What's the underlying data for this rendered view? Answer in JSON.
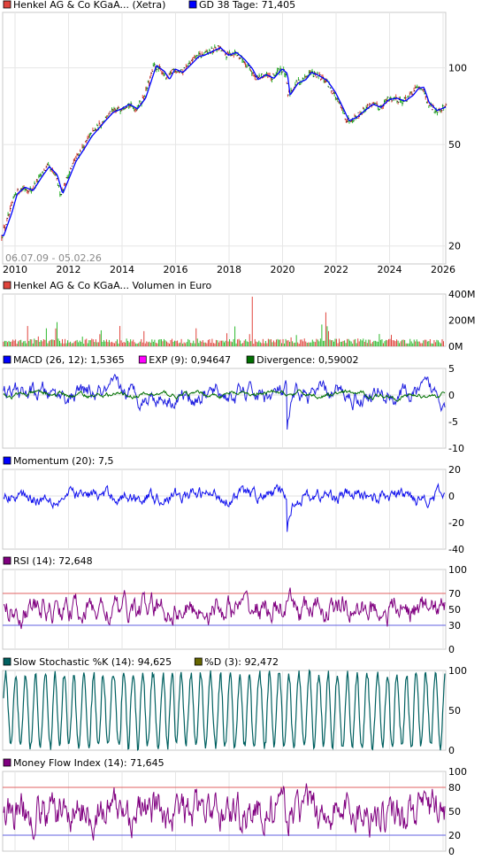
{
  "chart_data": [
    {
      "type": "line",
      "panel": "price",
      "legend": [
        {
          "label": "Henkel AG & Co KGaA... (Xetra)",
          "color": "#e0443c"
        },
        {
          "label": "GD 38 Tage: 71,405",
          "color": "#0000ff"
        }
      ],
      "date_range_label": "06.07.09 - 05.02.26",
      "x_ticks": [
        "2010",
        "2012",
        "2014",
        "2016",
        "2018",
        "2020",
        "2022",
        "2024",
        "2026"
      ],
      "y_ticks": [
        "100",
        "50",
        "20"
      ],
      "y_scale": "log",
      "ylim": [
        17,
        165
      ],
      "x": [
        2009.5,
        2009.8,
        2010.0,
        2010.3,
        2010.6,
        2010.9,
        2011.2,
        2011.5,
        2011.7,
        2011.9,
        2012.2,
        2012.5,
        2012.8,
        2013.0,
        2013.3,
        2013.6,
        2013.9,
        2014.2,
        2014.5,
        2014.8,
        2015.0,
        2015.2,
        2015.5,
        2015.7,
        2015.9,
        2016.2,
        2016.5,
        2016.8,
        2017.0,
        2017.3,
        2017.6,
        2017.9,
        2018.2,
        2018.5,
        2018.8,
        2019.0,
        2019.3,
        2019.6,
        2019.9,
        2020.1,
        2020.2,
        2020.5,
        2020.8,
        2021.0,
        2021.3,
        2021.6,
        2021.9,
        2022.2,
        2022.4,
        2022.7,
        2023.0,
        2023.3,
        2023.6,
        2023.9,
        2024.2,
        2024.5,
        2024.8,
        2025.0,
        2025.2,
        2025.4,
        2025.7,
        2026.0,
        2026.1
      ],
      "y": [
        22,
        27,
        32,
        34,
        33,
        37,
        41,
        38,
        32,
        36,
        43,
        48,
        54,
        57,
        62,
        67,
        69,
        72,
        69,
        76,
        88,
        102,
        97,
        90,
        99,
        96,
        103,
        111,
        112,
        116,
        120,
        112,
        115,
        108,
        99,
        90,
        94,
        91,
        99,
        95,
        78,
        87,
        90,
        96,
        93,
        89,
        80,
        69,
        62,
        64,
        68,
        72,
        70,
        75,
        76,
        74,
        78,
        83,
        84,
        73,
        68,
        70,
        71
      ]
    },
    {
      "type": "bar",
      "panel": "volume",
      "legend": [
        {
          "label": "Henkel AG & Co KGaA... Volumen in Euro",
          "color": "#e0443c"
        }
      ],
      "y_ticks": [
        "400M",
        "200M",
        "0M"
      ],
      "ylim": [
        0,
        400
      ]
    },
    {
      "type": "line",
      "panel": "macd",
      "legend": [
        {
          "label": "MACD (26, 12): 1,5365",
          "color": "#0000ff"
        },
        {
          "label": "EXP (9): 0,94647",
          "color": "#ff00ff"
        },
        {
          "label": "Divergence: 0,59002",
          "color": "#007000"
        }
      ],
      "y_ticks": [
        "5",
        "0",
        "-5",
        "-10"
      ],
      "ylim": [
        -10,
        5
      ]
    },
    {
      "type": "line",
      "panel": "momentum",
      "legend": [
        {
          "label": "Momentum (20): 7,5",
          "color": "#0000ff"
        }
      ],
      "y_ticks": [
        "20",
        "0",
        "-20",
        "-40"
      ],
      "ylim": [
        -40,
        20
      ]
    },
    {
      "type": "line",
      "panel": "rsi",
      "legend": [
        {
          "label": "RSI (14): 72,648",
          "color": "#800080"
        }
      ],
      "y_ticks": [
        "100",
        "70",
        "50",
        "30",
        "0"
      ],
      "ylim": [
        0,
        100
      ],
      "ref_lines": [
        70,
        30
      ]
    },
    {
      "type": "line",
      "panel": "stochastic",
      "legend": [
        {
          "label": "Slow Stochastic %K (14): 94,625",
          "color": "#006060"
        },
        {
          "label": "%D (3): 92,472",
          "color": "#666600"
        }
      ],
      "y_ticks": [
        "100",
        "50",
        "0"
      ],
      "ylim": [
        0,
        100
      ]
    },
    {
      "type": "line",
      "panel": "mfi",
      "legend": [
        {
          "label": "Money Flow Index (14): 71,645",
          "color": "#800080"
        }
      ],
      "y_ticks": [
        "100",
        "80",
        "50",
        "20",
        "0"
      ],
      "ylim": [
        0,
        100
      ],
      "ref_lines": [
        80,
        20
      ]
    }
  ]
}
